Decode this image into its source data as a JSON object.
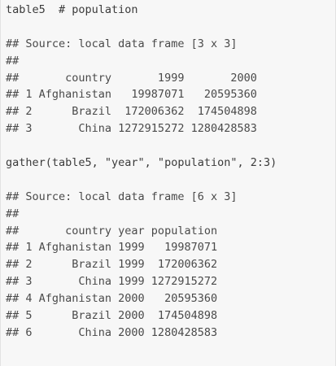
{
  "code_block": {
    "lines": [
      {
        "kind": "code",
        "text": "table5  # population"
      },
      {
        "kind": "blank",
        "text": ""
      },
      {
        "kind": "output",
        "text": "## Source: local data frame [3 x 3]"
      },
      {
        "kind": "output",
        "text": "##"
      },
      {
        "kind": "output",
        "text": "##       country       1999       2000"
      },
      {
        "kind": "output",
        "text": "## 1 Afghanistan   19987071   20595360"
      },
      {
        "kind": "output",
        "text": "## 2      Brazil  172006362  174504898"
      },
      {
        "kind": "output",
        "text": "## 3       China 1272915272 1280428583"
      },
      {
        "kind": "blank",
        "text": ""
      },
      {
        "kind": "code",
        "text": "gather(table5, \"year\", \"population\", 2:3)"
      },
      {
        "kind": "blank",
        "text": ""
      },
      {
        "kind": "output",
        "text": "## Source: local data frame [6 x 3]"
      },
      {
        "kind": "output",
        "text": "##"
      },
      {
        "kind": "output",
        "text": "##       country year population"
      },
      {
        "kind": "output",
        "text": "## 1 Afghanistan 1999   19987071"
      },
      {
        "kind": "output",
        "text": "## 2      Brazil 1999  172006362"
      },
      {
        "kind": "output",
        "text": "## 3       China 1999 1272915272"
      },
      {
        "kind": "output",
        "text": "## 4 Afghanistan 2000   20595360"
      },
      {
        "kind": "output",
        "text": "## 5      Brazil 2000  174504898"
      },
      {
        "kind": "output",
        "text": "## 6       China 2000 1280428583"
      }
    ]
  }
}
